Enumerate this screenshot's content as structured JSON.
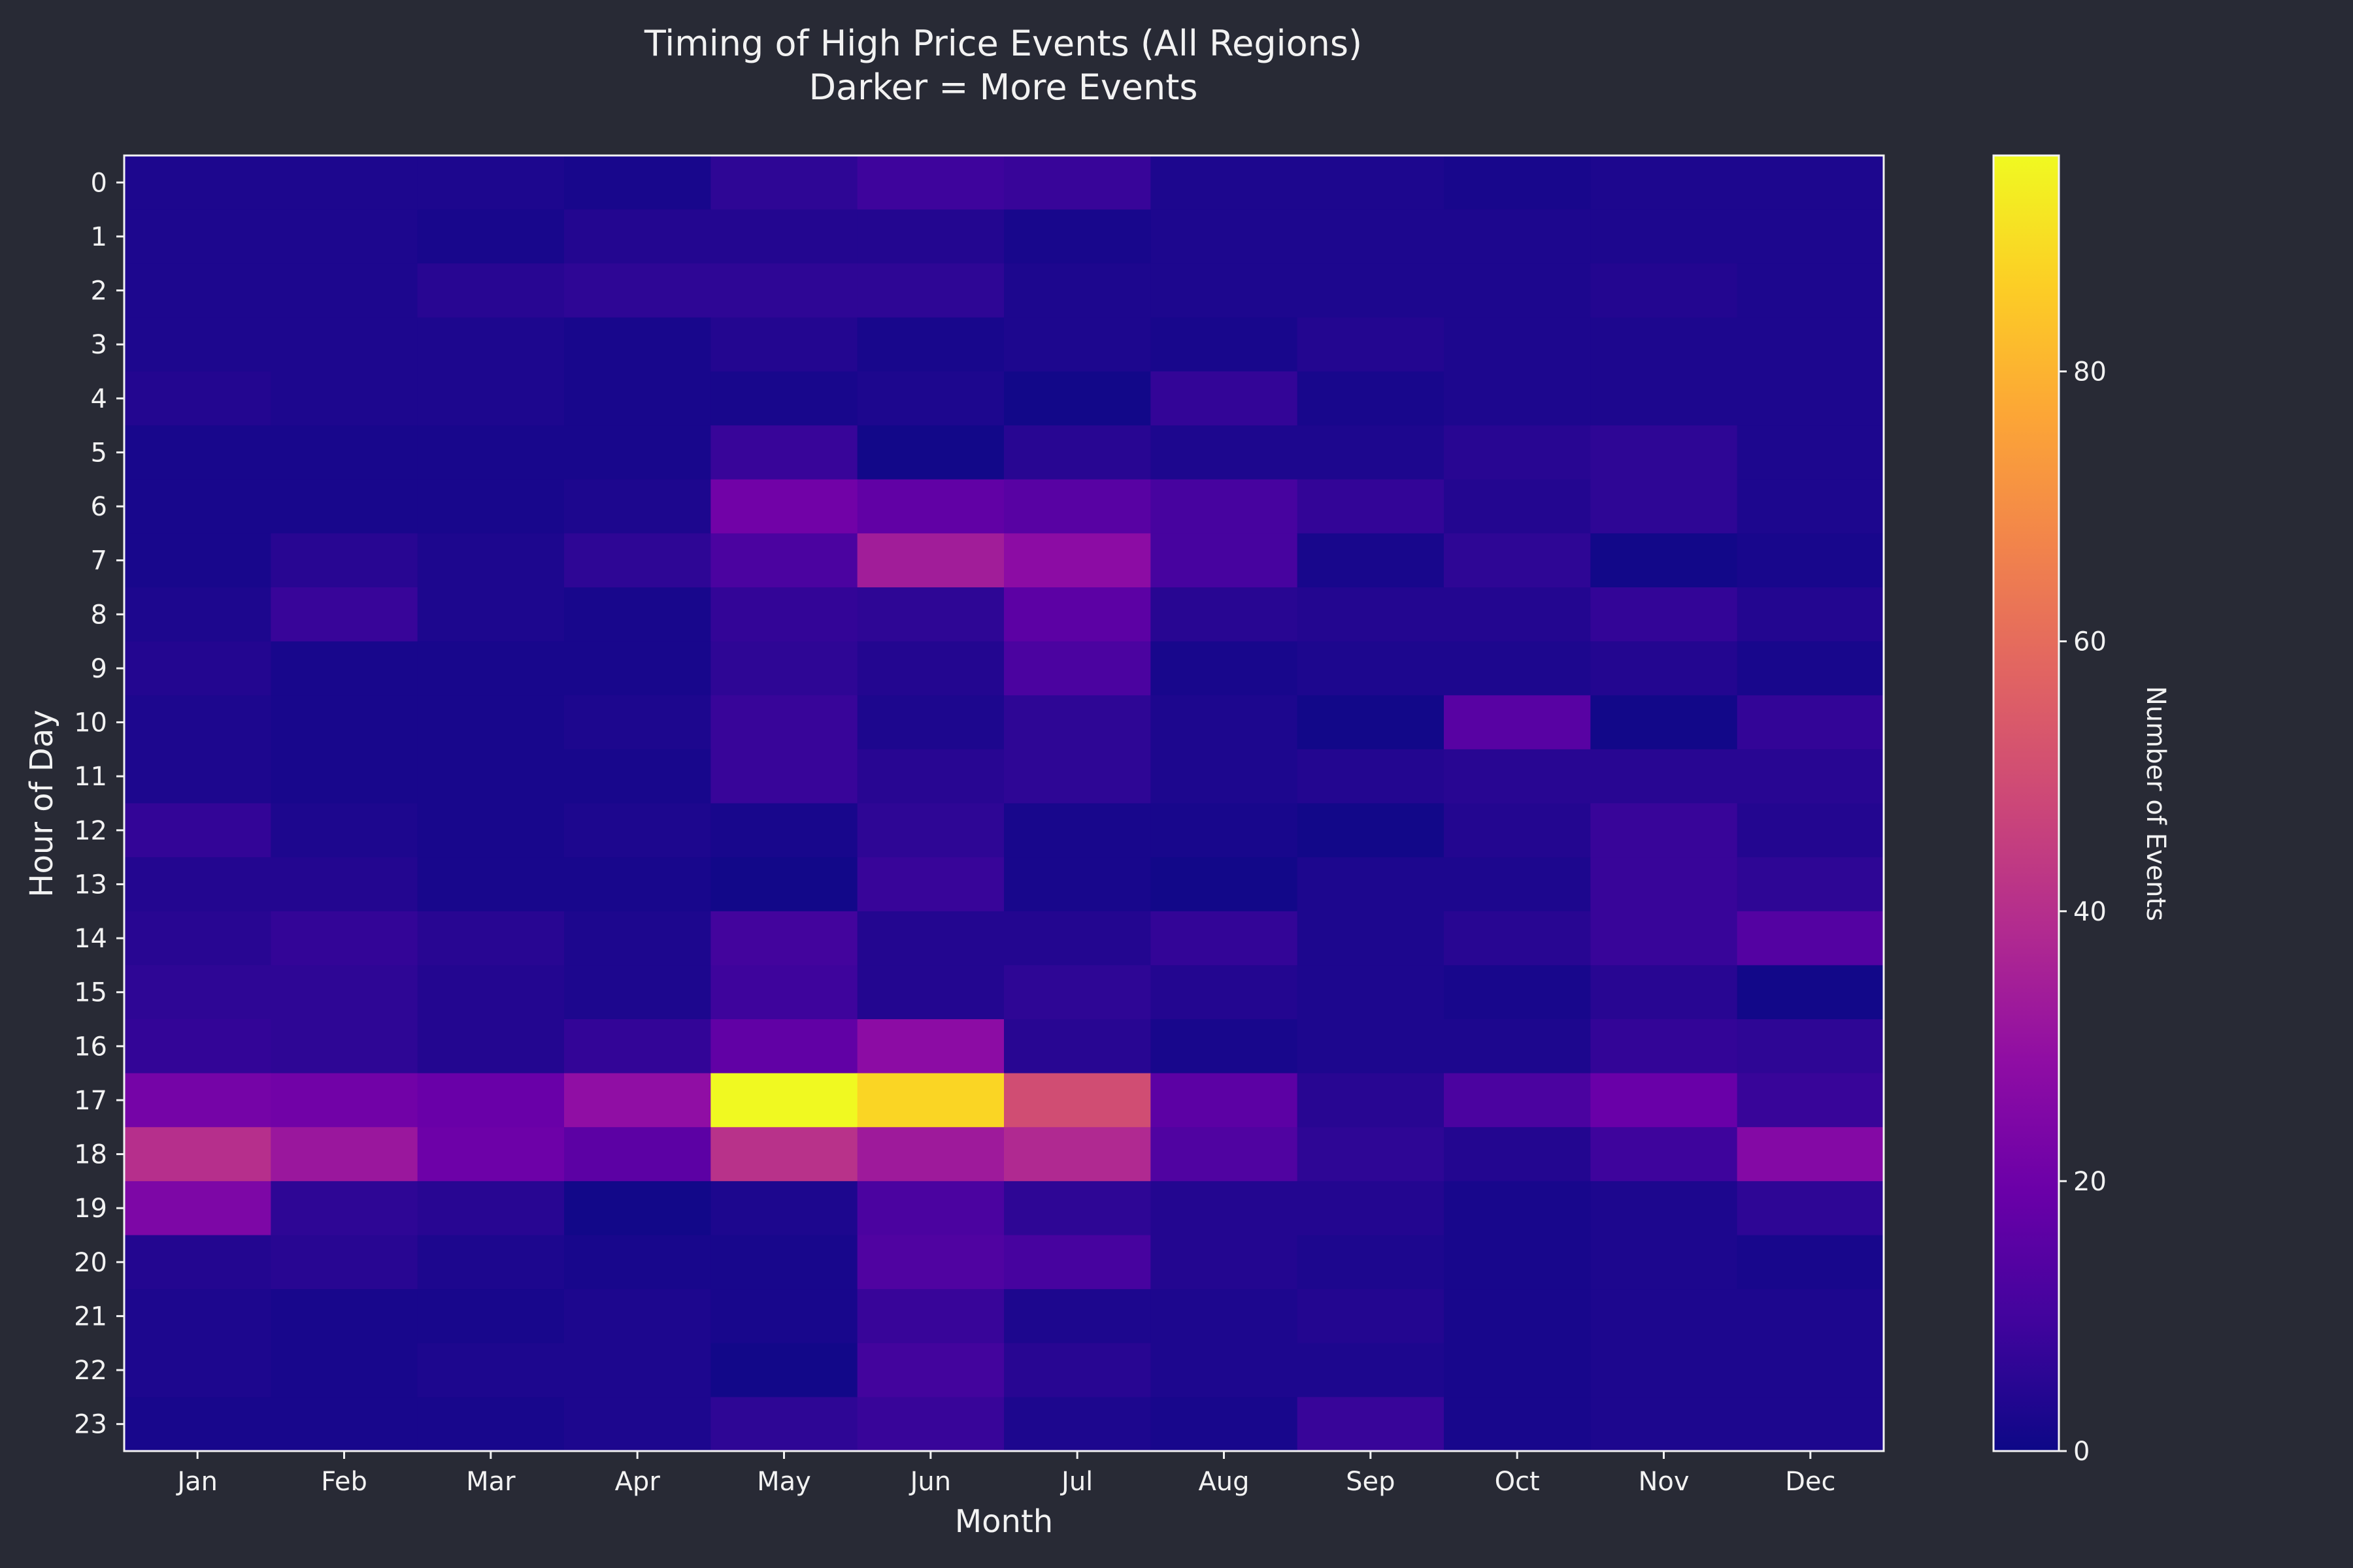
{
  "chart_data": {
    "type": "heatmap",
    "title_line1": "Timing of High Price Events (All Regions)",
    "title_line2": "Darker = More Events",
    "xlabel": "Month",
    "ylabel": "Hour of Day",
    "colorbar_label": "Number of Events",
    "colormap": "plasma",
    "value_range": [
      0,
      96
    ],
    "colorbar_ticks": [
      0,
      20,
      40,
      60,
      80
    ],
    "months": [
      "Jan",
      "Feb",
      "Mar",
      "Apr",
      "May",
      "Jun",
      "Jul",
      "Aug",
      "Sep",
      "Oct",
      "Nov",
      "Dec"
    ],
    "hours": [
      "0",
      "1",
      "2",
      "3",
      "4",
      "5",
      "6",
      "7",
      "8",
      "9",
      "10",
      "11",
      "12",
      "13",
      "14",
      "15",
      "16",
      "17",
      "18",
      "19",
      "20",
      "21",
      "22",
      "23"
    ],
    "values": [
      [
        3,
        3,
        3,
        2,
        6,
        9,
        8,
        3,
        3,
        2,
        3,
        3
      ],
      [
        3,
        3,
        2,
        4,
        4,
        4,
        2,
        3,
        3,
        3,
        3,
        3
      ],
      [
        3,
        3,
        5,
        6,
        6,
        6,
        3,
        3,
        3,
        3,
        4,
        3
      ],
      [
        3,
        3,
        3,
        2,
        4,
        2,
        3,
        2,
        4,
        3,
        3,
        3
      ],
      [
        4,
        3,
        3,
        2,
        2,
        3,
        1,
        7,
        2,
        3,
        3,
        3
      ],
      [
        2,
        2,
        2,
        2,
        8,
        1,
        5,
        3,
        3,
        5,
        6,
        3
      ],
      [
        2,
        2,
        2,
        3,
        21,
        17,
        15,
        11,
        7,
        4,
        6,
        3
      ],
      [
        2,
        5,
        3,
        6,
        12,
        34,
        28,
        11,
        2,
        6,
        1,
        2
      ],
      [
        3,
        8,
        3,
        2,
        7,
        6,
        16,
        5,
        4,
        4,
        7,
        4
      ],
      [
        4,
        2,
        2,
        2,
        6,
        4,
        12,
        2,
        3,
        3,
        4,
        2
      ],
      [
        3,
        2,
        2,
        3,
        8,
        3,
        6,
        3,
        1,
        15,
        1,
        7
      ],
      [
        3,
        2,
        2,
        2,
        8,
        5,
        6,
        3,
        4,
        5,
        5,
        5
      ],
      [
        7,
        3,
        2,
        3,
        2,
        6,
        2,
        2,
        1,
        4,
        8,
        4
      ],
      [
        4,
        4,
        2,
        2,
        1,
        8,
        2,
        1,
        3,
        3,
        8,
        6
      ],
      [
        5,
        7,
        5,
        3,
        10,
        4,
        4,
        7,
        3,
        5,
        8,
        14
      ],
      [
        6,
        6,
        4,
        3,
        9,
        4,
        6,
        4,
        3,
        2,
        5,
        1
      ],
      [
        7,
        6,
        4,
        7,
        17,
        28,
        5,
        2,
        3,
        3,
        7,
        6
      ],
      [
        22,
        21,
        19,
        29,
        96,
        88,
        50,
        16,
        5,
        12,
        19,
        8
      ],
      [
        40,
        32,
        20,
        16,
        41,
        33,
        38,
        13,
        6,
        4,
        9,
        26
      ],
      [
        24,
        6,
        5,
        1,
        3,
        12,
        6,
        4,
        4,
        2,
        3,
        6
      ],
      [
        4,
        5,
        3,
        2,
        2,
        13,
        11,
        4,
        3,
        2,
        3,
        2
      ],
      [
        3,
        2,
        2,
        3,
        2,
        8,
        3,
        3,
        4,
        2,
        3,
        3
      ],
      [
        3,
        2,
        3,
        3,
        1,
        10,
        5,
        3,
        3,
        2,
        3,
        3
      ],
      [
        2,
        2,
        2,
        3,
        6,
        8,
        3,
        2,
        8,
        2,
        3,
        3
      ]
    ]
  }
}
